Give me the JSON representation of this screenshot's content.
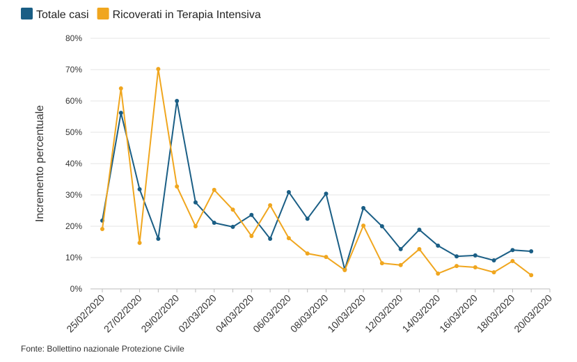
{
  "chart_data": {
    "type": "line",
    "y_label": "Incremento percentuale",
    "source": "Fonte: Bollettino nazionale Protezione Civile",
    "categories": [
      "25/02/2020",
      null,
      "27/02/2020",
      null,
      "29/02/2020",
      null,
      "02/03/2020",
      null,
      "04/03/2020",
      null,
      "06/03/2020",
      null,
      "08/03/2020",
      null,
      "10/03/2020",
      null,
      "12/03/2020",
      null,
      "14/03/2020",
      null,
      "16/03/2020",
      null,
      "18/03/2020",
      null,
      "20/03/2020"
    ],
    "series": [
      {
        "name": "Totale casi",
        "color": "#1a5e85",
        "values": [
          21.8,
          56.2,
          31.8,
          16,
          60,
          27.6,
          21.1,
          19.8,
          23.6,
          16,
          30.9,
          22.4,
          30.4,
          6.2,
          25.8,
          20,
          12.7,
          18.9,
          13.8,
          10.4,
          10.7,
          9.1,
          12.4,
          12,
          null
        ]
      },
      {
        "name": "Ricoverati in Terapia Intensiva",
        "color": "#f0a61e",
        "values": [
          19.1,
          64,
          14.7,
          70.2,
          32.7,
          20,
          31.6,
          25.3,
          16.9,
          26.7,
          16.2,
          11.3,
          10.2,
          6,
          20.2,
          8.2,
          7.6,
          12.7,
          4.9,
          7.3,
          6.9,
          5.3,
          8.9,
          4.4,
          null
        ]
      }
    ],
    "ylim": [
      0,
      80
    ],
    "yticks": [
      {
        "value": 0,
        "label": "0%"
      },
      {
        "value": 10,
        "label": "10%"
      },
      {
        "value": 20,
        "label": "20%"
      },
      {
        "value": 30,
        "label": "30%"
      },
      {
        "value": 40,
        "label": "40%"
      },
      {
        "value": 50,
        "label": "50%"
      },
      {
        "value": 60,
        "label": "60%"
      },
      {
        "value": 70,
        "label": "70%"
      },
      {
        "value": 80,
        "label": "80%"
      }
    ],
    "grid": true
  }
}
